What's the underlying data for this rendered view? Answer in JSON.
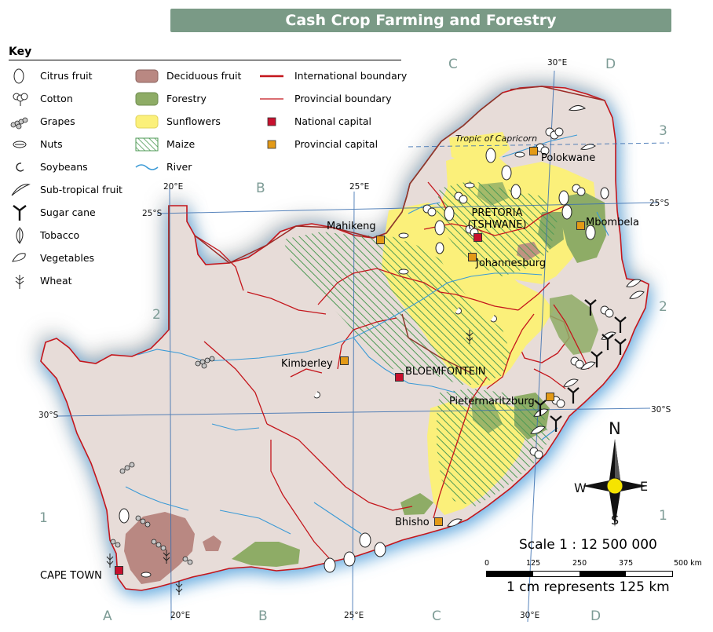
{
  "title": "Cash Crop Farming and Forestry",
  "key": {
    "heading": "Key",
    "column1": [
      {
        "label": "Citrus fruit",
        "icon": "citrus-fruit-icon"
      },
      {
        "label": "Cotton",
        "icon": "cotton-icon"
      },
      {
        "label": "Grapes",
        "icon": "grapes-icon"
      },
      {
        "label": "Nuts",
        "icon": "nuts-icon"
      },
      {
        "label": "Soybeans",
        "icon": "soybeans-icon"
      },
      {
        "label": "Sub-tropical fruit",
        "icon": "subtropical-fruit-icon"
      },
      {
        "label": "Sugar cane",
        "icon": "sugar-cane-icon"
      },
      {
        "label": "Tobacco",
        "icon": "tobacco-icon"
      },
      {
        "label": "Vegetables",
        "icon": "vegetables-icon"
      },
      {
        "label": "Wheat",
        "icon": "wheat-icon"
      }
    ],
    "column2": [
      {
        "label": "Deciduous fruit",
        "icon": "deciduous-fruit-swatch",
        "color": "#b98882"
      },
      {
        "label": "Forestry",
        "icon": "forestry-swatch",
        "color": "#8eac66"
      },
      {
        "label": "Sunflowers",
        "icon": "sunflowers-swatch",
        "color": "#fbf07a"
      },
      {
        "label": "Maize",
        "icon": "maize-hatch-swatch",
        "color": "#4e9a55"
      },
      {
        "label": "River",
        "icon": "river-line",
        "color": "#3b9ad6"
      }
    ],
    "column3": [
      {
        "label": "International boundary",
        "icon": "international-boundary-line",
        "color": "#c4161c"
      },
      {
        "label": "Provincial boundary",
        "icon": "provincial-boundary-line",
        "color": "#c4161c"
      },
      {
        "label": "National capital",
        "icon": "national-capital-marker",
        "color": "#c8102e"
      },
      {
        "label": "Provincial capital",
        "icon": "provincial-capital-marker",
        "color": "#e39a17"
      }
    ]
  },
  "grid": {
    "columns": [
      "A",
      "B",
      "C",
      "D"
    ],
    "rows": [
      "1",
      "2",
      "3"
    ],
    "longitudes": [
      "20°E",
      "25°E",
      "30°E"
    ],
    "latitudes": [
      "25°S",
      "30°S"
    ]
  },
  "tropic_label": "Tropic of Capricorn",
  "cities": {
    "polokwane": "Polokwane",
    "pretoria": "PRETORIA (TSHWANE)",
    "mbombela": "Mbombela",
    "mahikeng": "Mahikeng",
    "johannesburg": "Johannesburg",
    "kimberley": "Kimberley",
    "bloemfontein": "BLOEMFONTEIN",
    "pietermaritzburg": "Pietermaritzburg",
    "bisho": "Bhisho",
    "cape_town": "CAPE TOWN"
  },
  "compass": {
    "n": "N",
    "s": "S",
    "e": "E",
    "w": "W"
  },
  "scale": {
    "title": "Scale 1 : 12 500 000",
    "ticks": [
      "0",
      "125",
      "250",
      "375",
      "500 km"
    ],
    "note": "1 cm represents 125 km"
  },
  "colors": {
    "land": "#e7dcd8",
    "coast_glow": "#6fb3ea",
    "title_bar": "#7a9a86",
    "grid_label": "#7e9c96",
    "grid_line": "#3a6fb0"
  }
}
